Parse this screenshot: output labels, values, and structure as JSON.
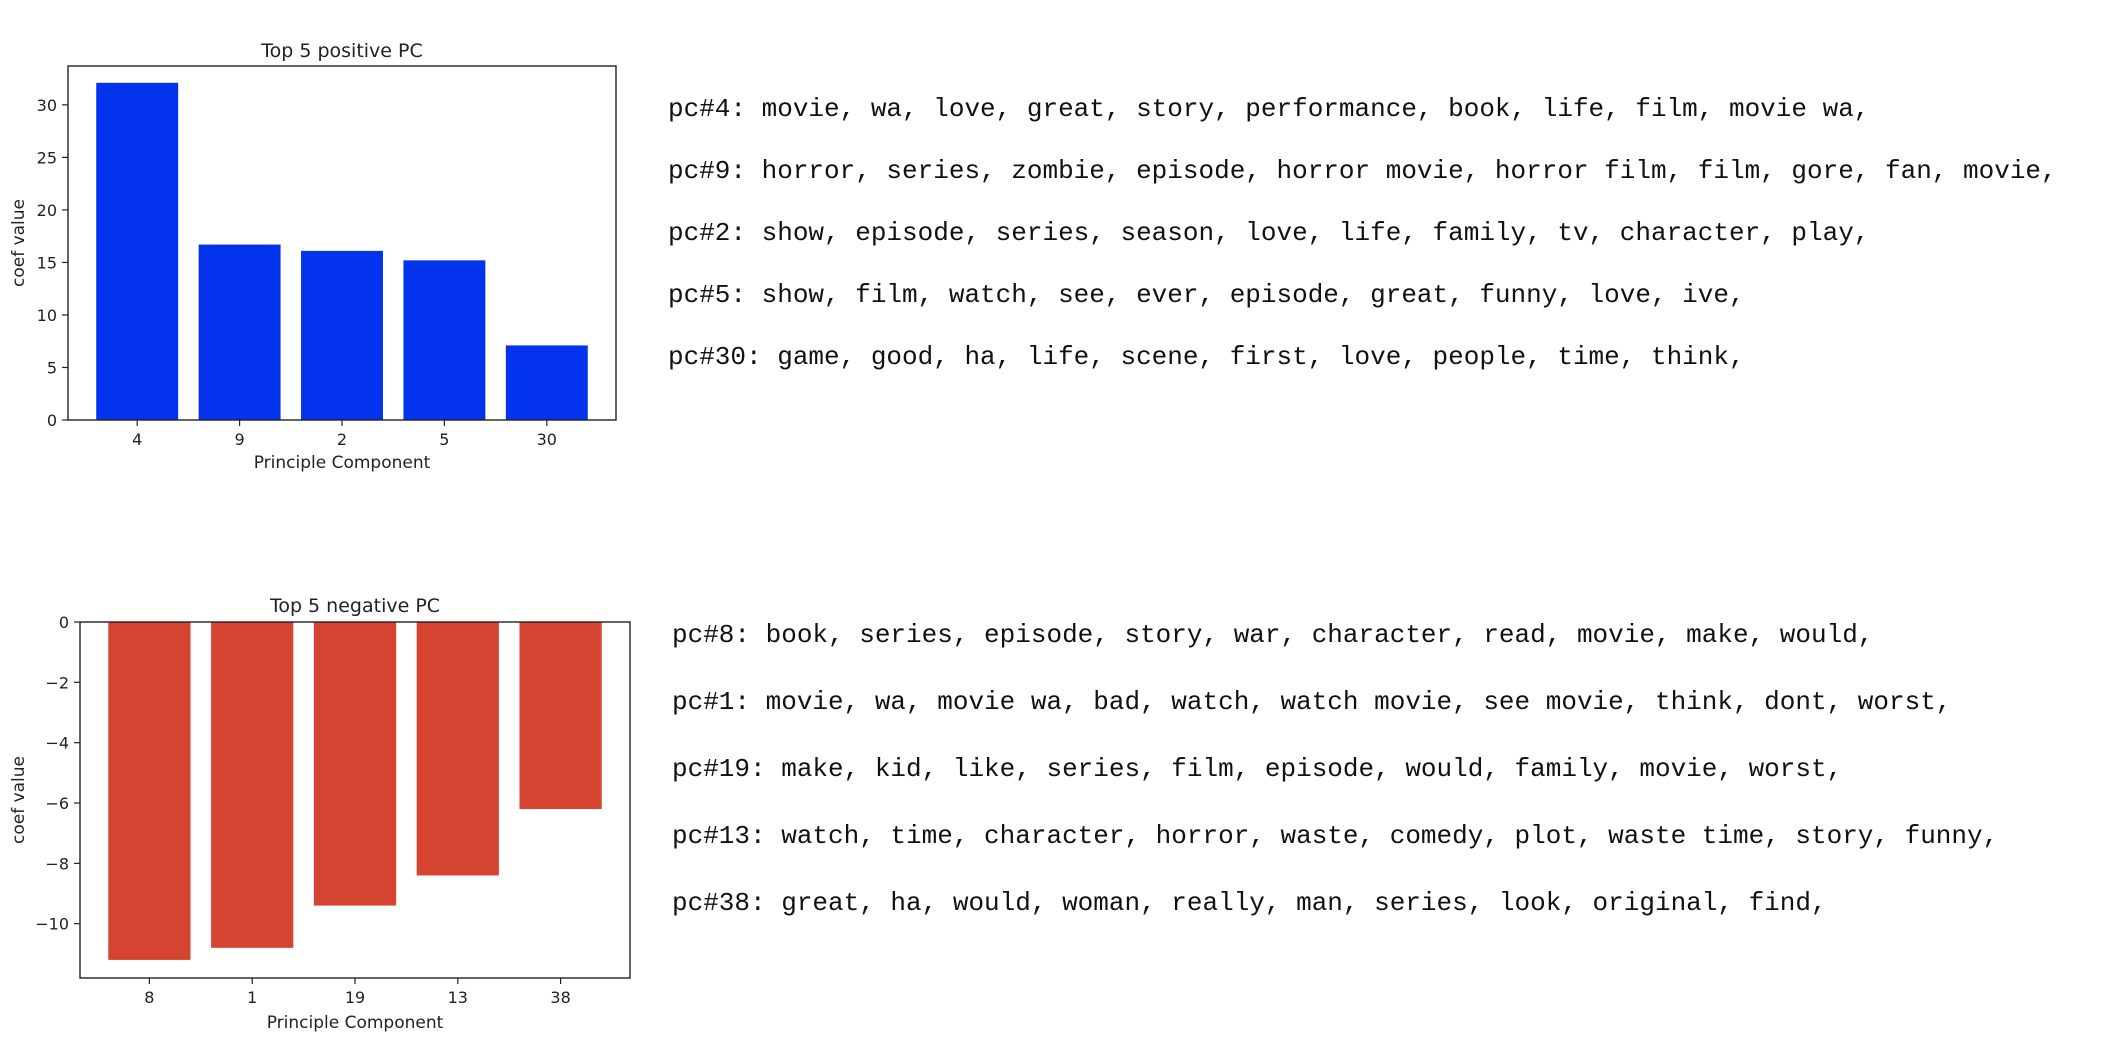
{
  "chart_data": [
    {
      "type": "bar",
      "title": "Top 5 positive PC",
      "xlabel": "Principle Component",
      "ylabel": "coef value",
      "categories": [
        "4",
        "9",
        "2",
        "5",
        "30"
      ],
      "values": [
        32.1,
        16.7,
        16.1,
        15.2,
        7.1
      ],
      "ylim": [
        0,
        33.7
      ],
      "yticks": [
        0,
        5,
        10,
        15,
        20,
        25,
        30
      ],
      "ytick_labels": [
        "0",
        "5",
        "10",
        "15",
        "20",
        "25",
        "30"
      ],
      "grid": false,
      "color": "#0433ee"
    },
    {
      "type": "bar",
      "title": "Top 5 negative PC",
      "xlabel": "Principle Component",
      "ylabel": "coef value",
      "categories": [
        "8",
        "1",
        "19",
        "13",
        "38"
      ],
      "values": [
        -11.2,
        -10.8,
        -9.4,
        -8.4,
        -6.2
      ],
      "ylim": [
        -11.8,
        0
      ],
      "yticks": [
        0,
        -2,
        -4,
        -6,
        -8,
        -10
      ],
      "ytick_labels": [
        "0",
        "−2",
        "−4",
        "−6",
        "−8",
        "−10"
      ],
      "grid": false,
      "color": "#d54431"
    }
  ],
  "positive_terms": [
    "pc#4: movie, wa, love, great, story, performance, book, life, film, movie wa,",
    "pc#9: horror, series, zombie, episode, horror movie, horror film, film, gore, fan, movie,",
    "pc#2: show, episode, series, season, love, life, family, tv, character, play,",
    "pc#5: show, film, watch, see, ever, episode, great, funny, love, ive,",
    "pc#30: game, good, ha, life, scene, first, love, people, time, think,"
  ],
  "negative_terms": [
    "pc#8: book, series, episode, story, war, character, read, movie, make, would,",
    "pc#1: movie, wa, movie wa, bad, watch, watch movie, see movie, think, dont, worst,",
    "pc#19: make, kid, like, series, film, episode, would, family, movie, worst,",
    "pc#13: watch, time, character, horror, waste, comedy, plot, waste time, story, funny,",
    "pc#38: great, ha, would, woman, really, man, series, look, original, find,"
  ]
}
